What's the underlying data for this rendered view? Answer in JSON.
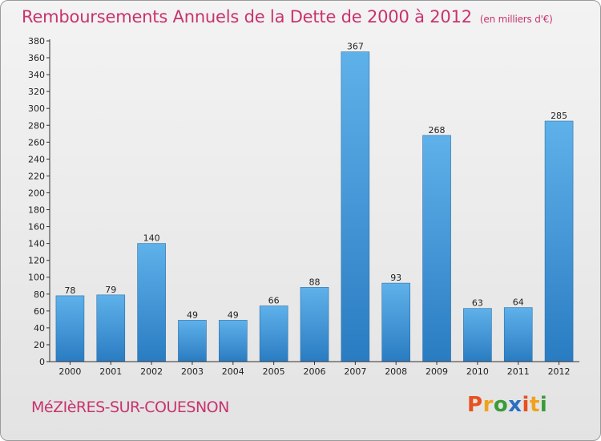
{
  "header": {
    "title": "Remboursements Annuels de la Dette de 2000 à 2012",
    "unit": "(en milliers d'€)"
  },
  "footer": {
    "city": "MéZIèRES-SUR-COUESNON",
    "logo_letters": [
      "P",
      "r",
      "o",
      "x",
      "i",
      "t",
      "i"
    ],
    "logo_colors": [
      "#e8501e",
      "#f0a21c",
      "#3a9b3a",
      "#2a6fc2",
      "#e8501e",
      "#f0a21c",
      "#3a9b3a"
    ]
  },
  "chart_data": {
    "type": "bar",
    "title": "Remboursements Annuels de la Dette de 2000 à 2012",
    "subtitle": "(en milliers d'€)",
    "categories": [
      "2000",
      "2001",
      "2002",
      "2003",
      "2004",
      "2005",
      "2006",
      "2007",
      "2008",
      "2009",
      "2010",
      "2011",
      "2012"
    ],
    "values": [
      78,
      79,
      140,
      49,
      49,
      66,
      88,
      367,
      93,
      268,
      63,
      64,
      285
    ],
    "data_labels": [
      "78",
      "79",
      "140",
      "49",
      "49",
      "66",
      "88",
      "367",
      "93",
      "268",
      "63",
      "64",
      "285"
    ],
    "ylim": [
      0,
      380
    ],
    "yticks": [
      0,
      20,
      40,
      60,
      80,
      100,
      120,
      140,
      160,
      180,
      200,
      220,
      240,
      260,
      280,
      300,
      320,
      340,
      360,
      380
    ],
    "grid": false,
    "colors": {
      "bar_light": "#5fb1ea",
      "bar_dark": "#2a7cc2",
      "axis": "#333333"
    }
  }
}
